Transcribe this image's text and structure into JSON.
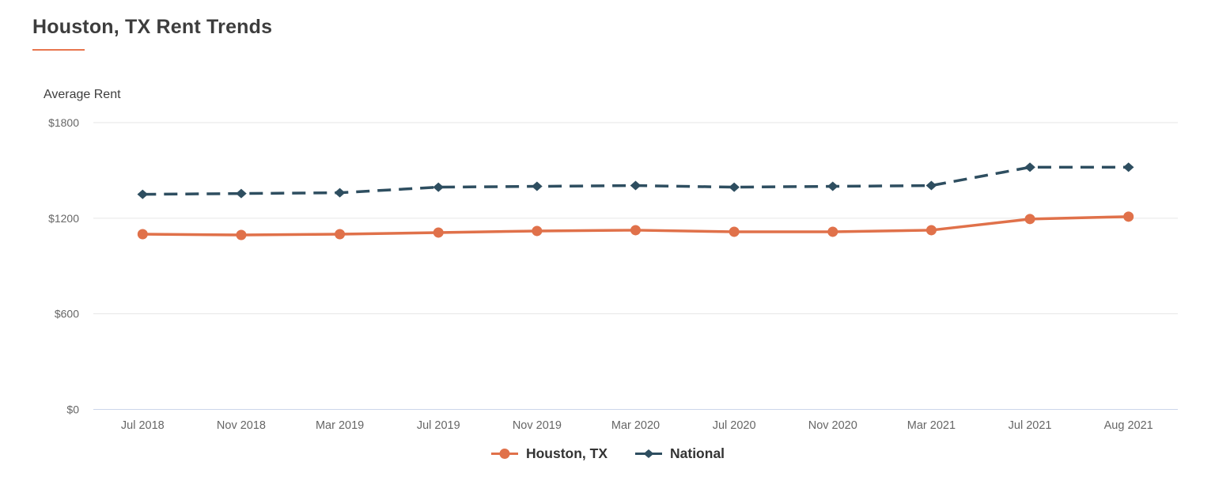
{
  "page": {
    "title": "Houston, TX Rent Trends"
  },
  "colors": {
    "accent_underline": "#e8764e",
    "houston_series": "#e0714a",
    "national_series": "#2e4e60",
    "gridline": "#e6e6e6",
    "baseline_axis": "#ccd6eb",
    "tick_label": "#666666",
    "title_text": "#3d3d3d",
    "legend_text": "#333333"
  },
  "chart_data": {
    "type": "line",
    "title": "Houston, TX Rent Trends",
    "xlabel": "",
    "ylabel": "Average Rent",
    "ylim": [
      0,
      1800
    ],
    "grid": "horizontal-only",
    "legend_position": "bottom",
    "categories": [
      "Jul 2018",
      "Nov 2018",
      "Mar 2019",
      "Jul 2019",
      "Nov 2019",
      "Mar 2020",
      "Jul 2020",
      "Nov 2020",
      "Mar 2021",
      "Jul 2021",
      "Aug 2021"
    ],
    "yticks": [
      {
        "value": 0,
        "label": "$0"
      },
      {
        "value": 600,
        "label": "$600"
      },
      {
        "value": 1200,
        "label": "$1200"
      },
      {
        "value": 1800,
        "label": "$1800"
      }
    ],
    "series": [
      {
        "name": "Houston, TX",
        "color": "#e0714a",
        "marker": "circle",
        "line_style": "solid",
        "values": [
          1100,
          1095,
          1100,
          1110,
          1120,
          1125,
          1115,
          1115,
          1125,
          1195,
          1210
        ]
      },
      {
        "name": "National",
        "color": "#2e4e60",
        "marker": "diamond",
        "line_style": "dashed",
        "values": [
          1350,
          1355,
          1360,
          1395,
          1400,
          1405,
          1395,
          1400,
          1405,
          1520,
          1520
        ]
      }
    ]
  }
}
